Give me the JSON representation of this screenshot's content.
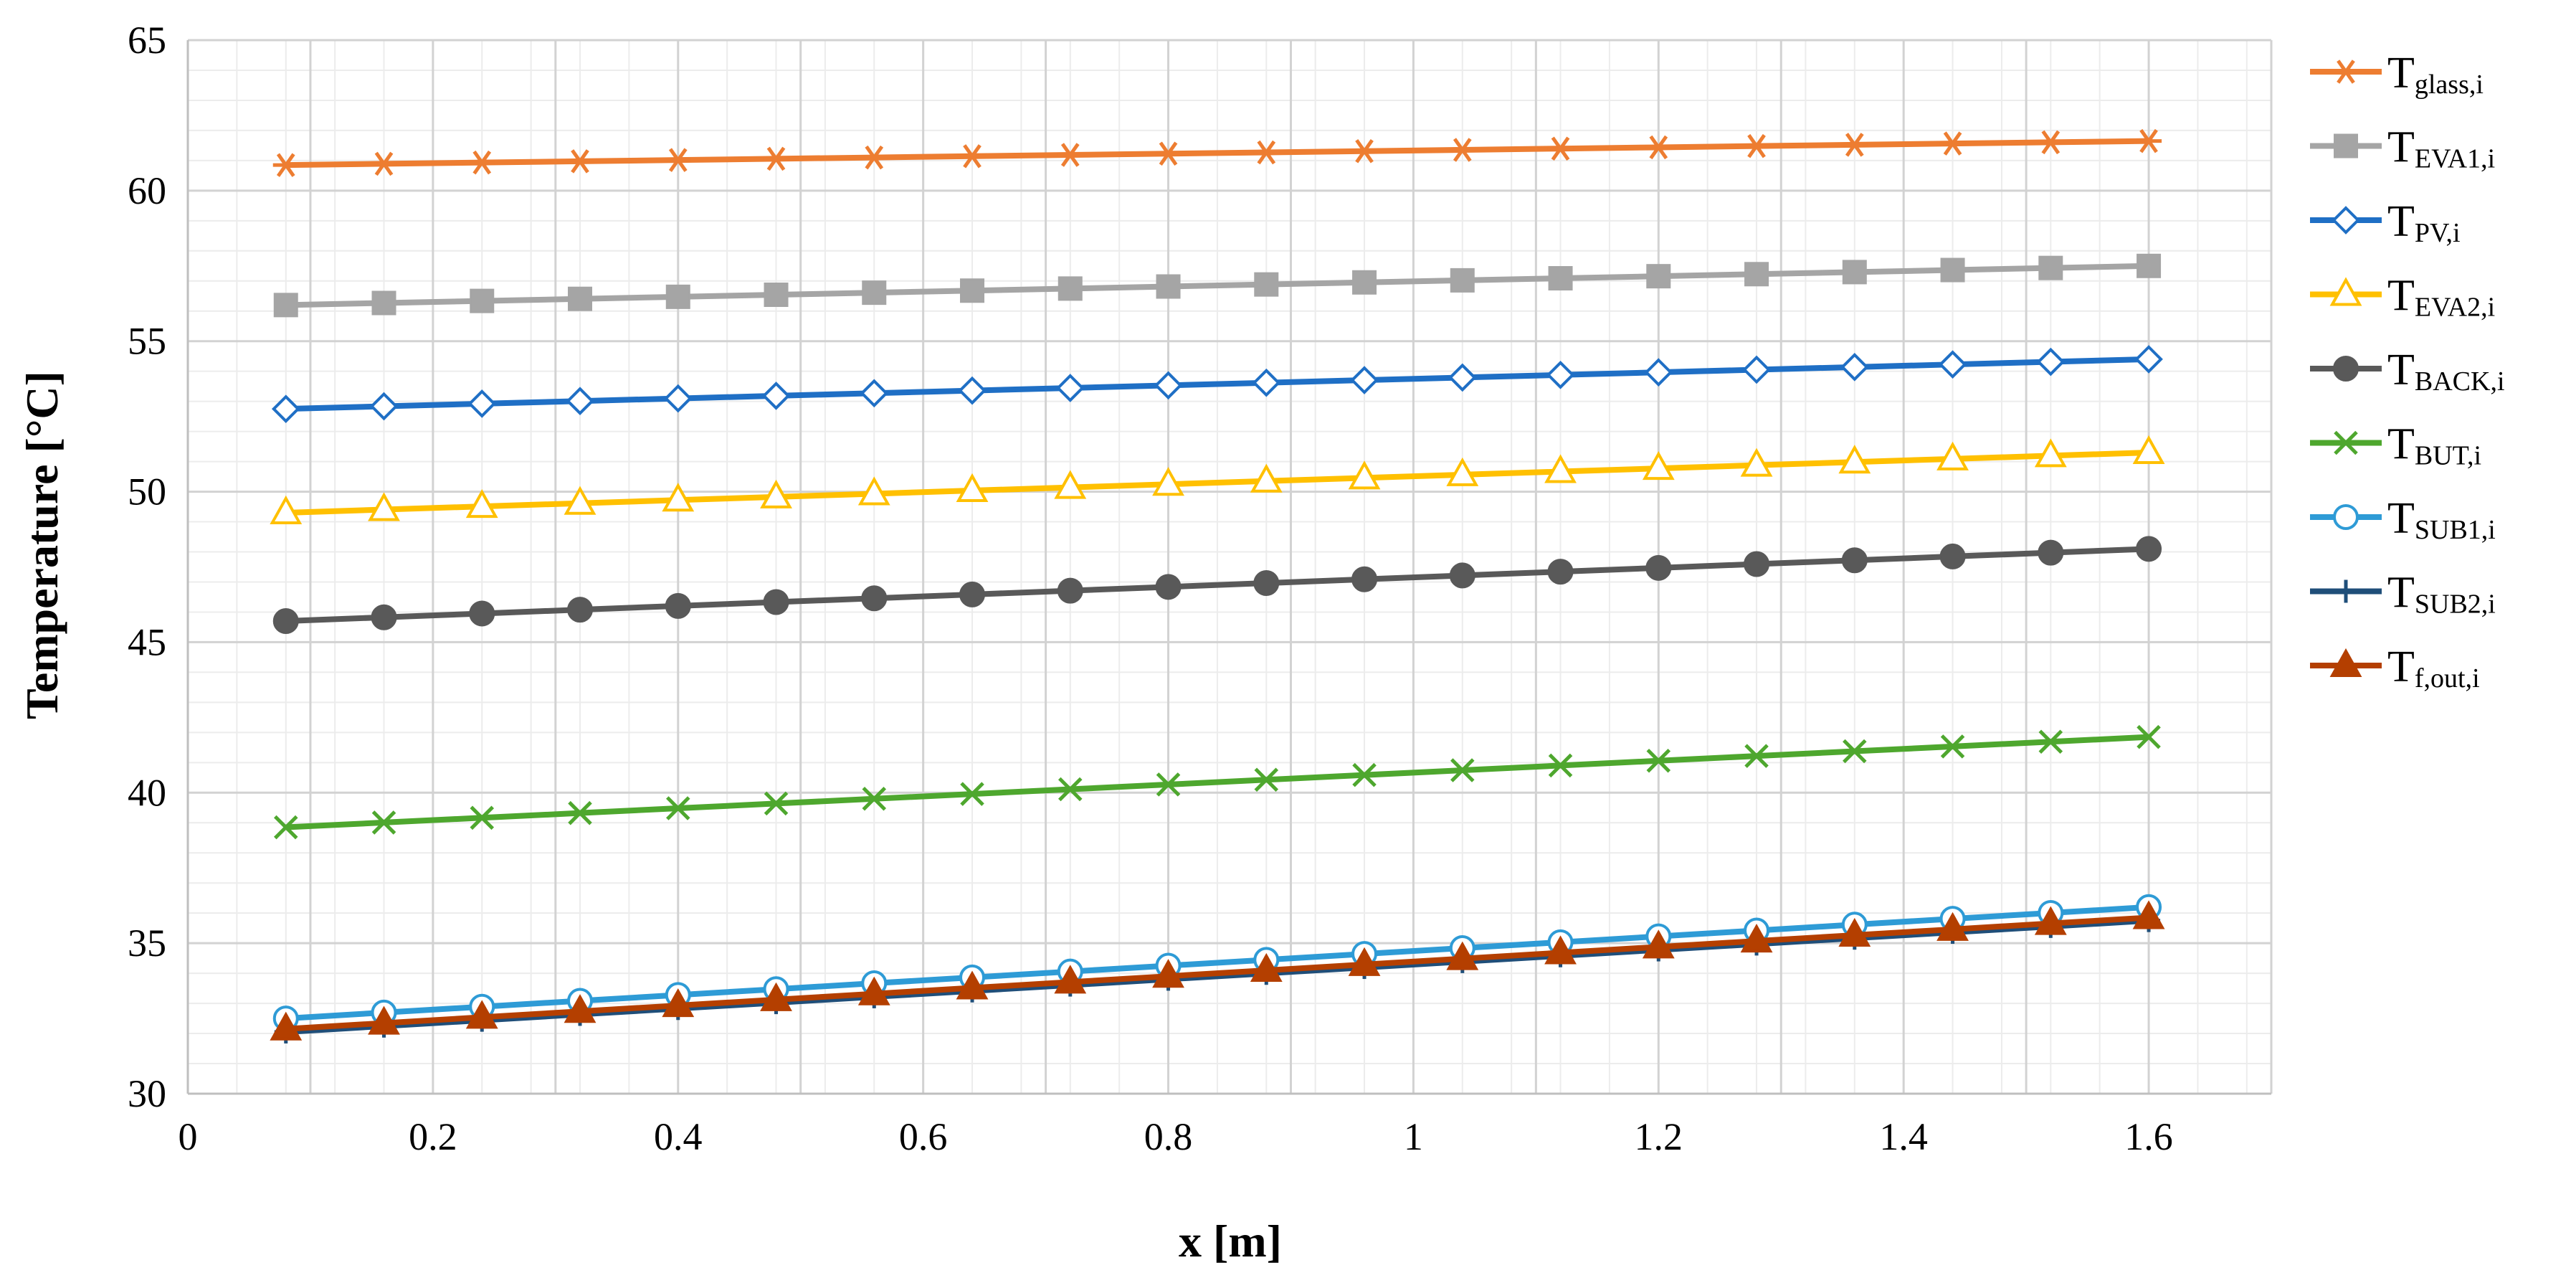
{
  "chart_data": {
    "type": "line",
    "title": "",
    "xlabel": "x [m]",
    "ylabel": "Temperature [°C]",
    "xlim": [
      0,
      1.7
    ],
    "ylim": [
      30,
      65
    ],
    "xticks": [
      0,
      0.2,
      0.4,
      0.6,
      0.8,
      1,
      1.2,
      1.4,
      1.6
    ],
    "yticks": [
      30,
      35,
      40,
      45,
      50,
      55,
      60,
      65
    ],
    "grid": true,
    "legend_position": "right",
    "x": [
      0.08,
      0.16,
      0.24,
      0.32,
      0.4,
      0.48,
      0.56,
      0.64,
      0.72,
      0.8,
      0.88,
      0.96,
      1.04,
      1.12,
      1.2,
      1.28,
      1.36,
      1.44,
      1.52,
      1.6
    ],
    "series": [
      {
        "name": "T_glass,i",
        "label_main": "T",
        "label_sub": "glass,i",
        "color": "#ED7D31",
        "marker": "asterisk",
        "start": 60.85,
        "end": 61.65
      },
      {
        "name": "T_EVA1,i",
        "label_main": "T",
        "label_sub": "EVA1,i",
        "color": "#A5A5A5",
        "marker": "square",
        "start": 56.2,
        "end": 57.5
      },
      {
        "name": "T_PV,i",
        "label_main": "T",
        "label_sub": "PV,i",
        "color": "#1F6FC5",
        "marker": "diamond-open",
        "start": 52.75,
        "end": 54.4
      },
      {
        "name": "T_EVA2,i",
        "label_main": "T",
        "label_sub": "EVA2,i",
        "color": "#FFC000",
        "marker": "triangle-open",
        "start": 49.3,
        "end": 51.3
      },
      {
        "name": "T_BACK,i",
        "label_main": "T",
        "label_sub": "BACK,i",
        "color": "#595959",
        "marker": "circle",
        "start": 45.7,
        "end": 48.1
      },
      {
        "name": "T_BUT,i",
        "label_main": "T",
        "label_sub": "BUT,i",
        "color": "#4EA72E",
        "marker": "x",
        "start": 38.85,
        "end": 41.85
      },
      {
        "name": "T_SUB1,i",
        "label_main": "T",
        "label_sub": "SUB1,i",
        "color": "#2E9BD6",
        "marker": "circle-open",
        "start": 32.5,
        "end": 36.2
      },
      {
        "name": "T_SUB2,i",
        "label_main": "T",
        "label_sub": "SUB2,i",
        "color": "#1F4E79",
        "marker": "plus",
        "start": 32.05,
        "end": 35.75
      },
      {
        "name": "T_f,out,i",
        "label_main": "T",
        "label_sub": "f,out,i",
        "color": "#B43F00",
        "marker": "triangle",
        "start": 32.15,
        "end": 35.85
      }
    ]
  }
}
